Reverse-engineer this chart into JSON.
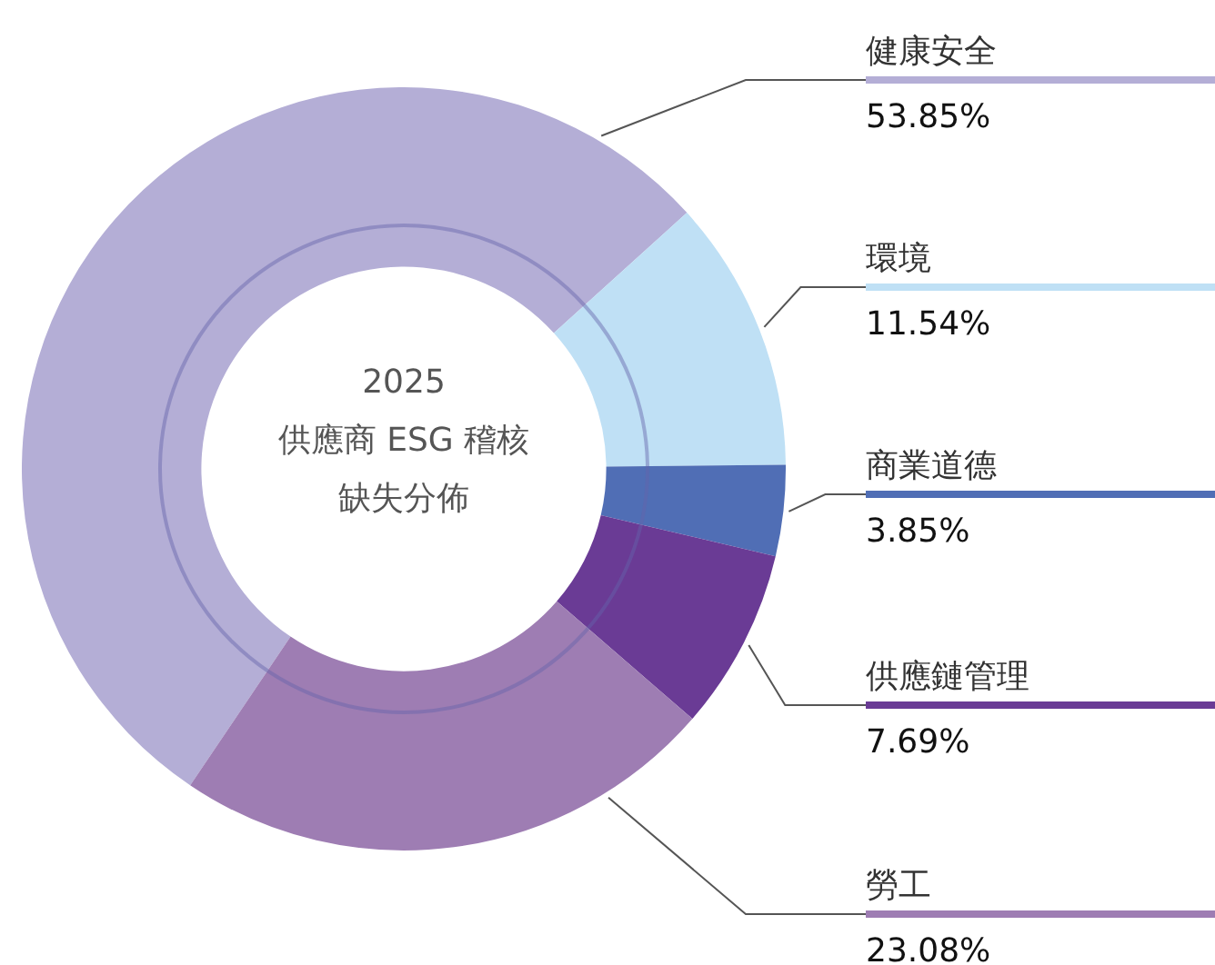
{
  "chart_data": {
    "type": "donut",
    "title": "2025",
    "subtitle": "供應商 ESG 稽核缺失分佈",
    "categories": [
      "健康安全",
      "環境",
      "商業道德",
      "供應鏈管理",
      "勞工"
    ],
    "values": [
      53.85,
      11.54,
      3.85,
      7.69,
      23.08
    ],
    "value_labels": [
      "53.85%",
      "11.54%",
      "3.85%",
      "7.69%",
      "23.08%"
    ],
    "colors": [
      "#b4aed6",
      "#bfe0f5",
      "#506eb5",
      "#6a3b95",
      "#9e7db3"
    ],
    "legend": false
  }
}
